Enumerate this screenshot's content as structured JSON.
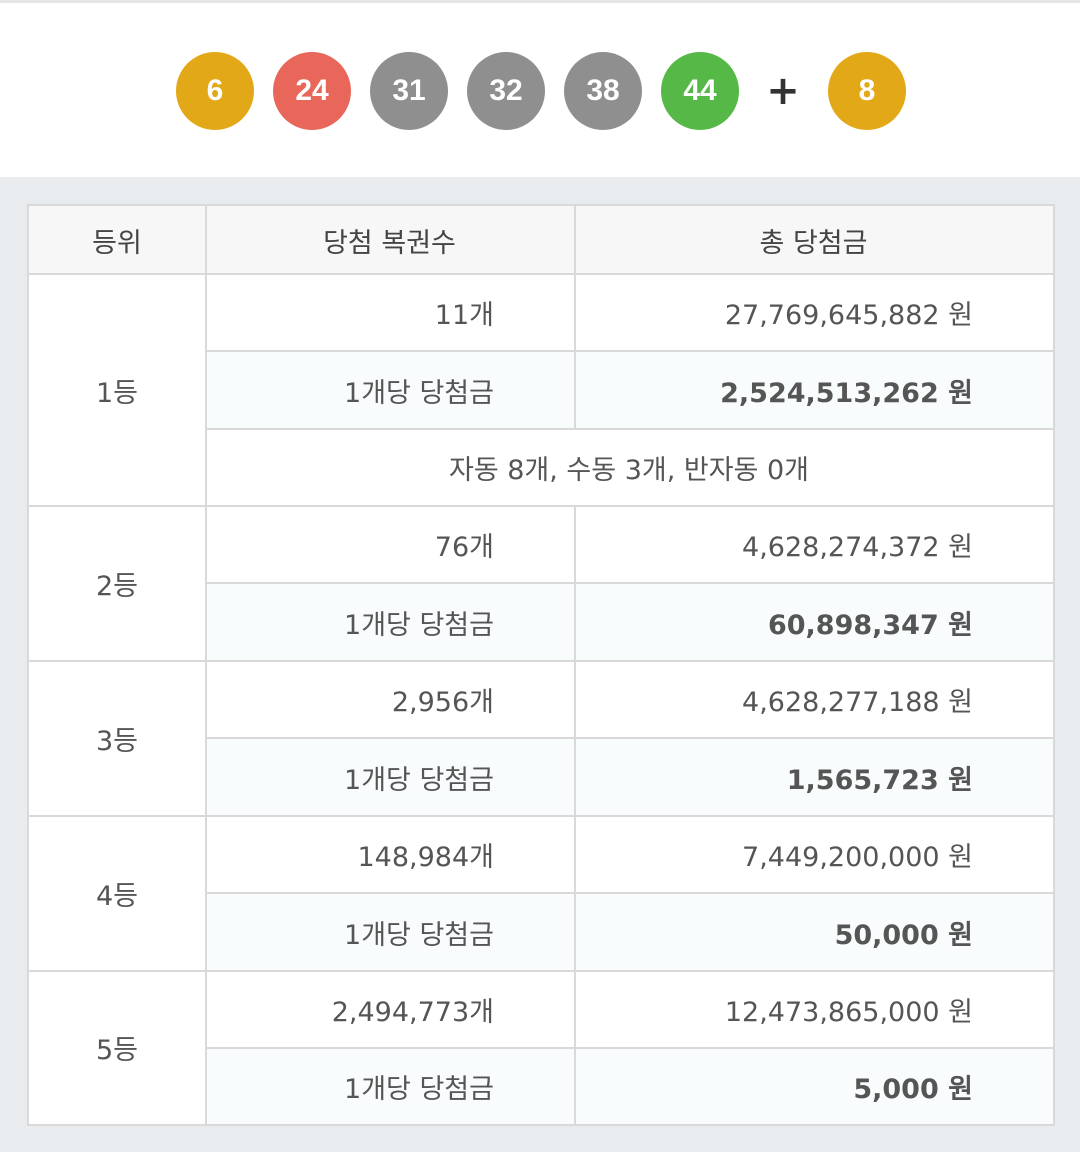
{
  "balls": [
    {
      "number": "6",
      "color": "#e3a817"
    },
    {
      "number": "24",
      "color": "#e8665a"
    },
    {
      "number": "31",
      "color": "#8f8f8f"
    },
    {
      "number": "32",
      "color": "#8f8f8f"
    },
    {
      "number": "38",
      "color": "#8f8f8f"
    },
    {
      "number": "44",
      "color": "#56b947"
    }
  ],
  "plus_sign": "+",
  "bonus_ball": {
    "number": "8",
    "color": "#e3a817"
  },
  "table": {
    "headers": [
      "등위",
      "당첨 복권수",
      "총 당첨금"
    ],
    "per_ticket_label": "1개당 당첨금",
    "rows": [
      {
        "rank": "1등",
        "count": "11개",
        "total": "27,769,645,882 원",
        "per": "2,524,513,262 원",
        "note": "자동 8개, 수동 3개, 반자동 0개"
      },
      {
        "rank": "2등",
        "count": "76개",
        "total": "4,628,274,372 원",
        "per": "60,898,347 원"
      },
      {
        "rank": "3등",
        "count": "2,956개",
        "total": "4,628,277,188 원",
        "per": "1,565,723 원"
      },
      {
        "rank": "4등",
        "count": "148,984개",
        "total": "7,449,200,000 원",
        "per": "50,000 원"
      },
      {
        "rank": "5등",
        "count": "2,494,773개",
        "total": "12,473,865,000 원",
        "per": "5,000 원"
      }
    ]
  }
}
